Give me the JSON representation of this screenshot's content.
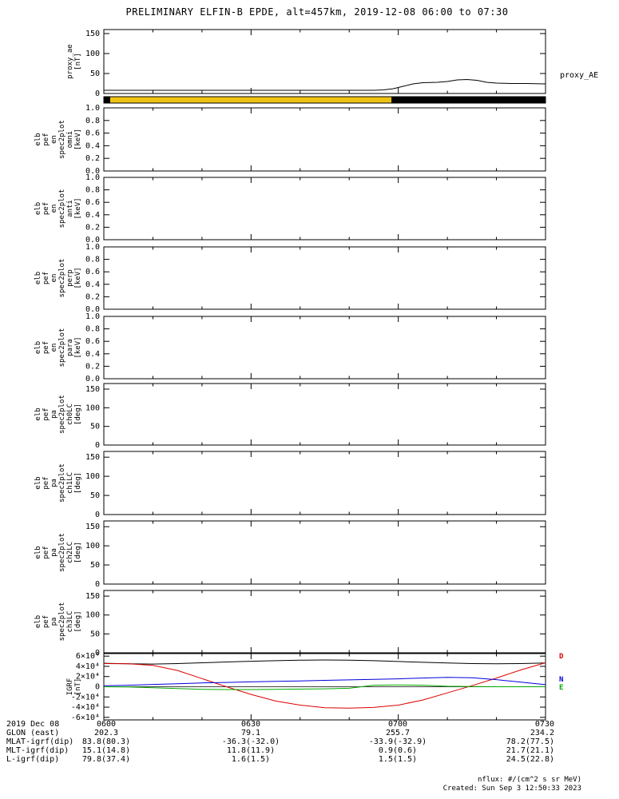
{
  "title": "PRELIMINARY ELFIN-B EPDE, alt=457km, 2019-12-08 06:00 to 07:30",
  "footnotes": [
    "nflux: #/(cm^2 s sr MeV)",
    "Created: Sun Sep  3 12:50:33 2023"
  ],
  "xaxis": {
    "range_minutes": [
      0,
      90
    ],
    "major_ticks_minutes": [
      0,
      30,
      60,
      90
    ],
    "minor_step_minutes": 10,
    "tick_labels": [
      "0600",
      "0630",
      "0700",
      "0730"
    ]
  },
  "footer_rows": [
    {
      "label": "2019 Dec 08",
      "values": [
        "0600",
        "0630",
        "0700",
        "0730"
      ]
    },
    {
      "label": "GLON (east)",
      "values": [
        "202.3",
        "79.1",
        "255.7",
        "234.2"
      ]
    },
    {
      "label": "MLAT-igrf(dip)",
      "values": [
        "83.8(80.3)",
        "-36.3(-32.0)",
        "-33.9(-32.9)",
        "78.2(77.5)"
      ]
    },
    {
      "label": "MLT-igrf(dip)",
      "values": [
        "15.1(14.8)",
        "11.8(11.9)",
        "0.9(0.6)",
        "21.7(21.1)"
      ]
    },
    {
      "label": "L-igrf(dip)",
      "values": [
        "79.8(37.4)",
        "1.6(1.5)",
        "1.5(1.5)",
        "24.5(22.8)"
      ]
    }
  ],
  "chart_data": [
    {
      "id": "proxy_ae",
      "type": "line",
      "ylabel_lines": [
        "proxy_ae",
        "[nT]"
      ],
      "yrange": [
        0,
        160
      ],
      "yticks": [
        0,
        50,
        100,
        150
      ],
      "ytick_labels": [
        "0",
        "50",
        "100",
        "150"
      ],
      "right_label": "proxy_AE",
      "x_minutes": [
        0,
        10,
        20,
        30,
        40,
        50,
        55,
        57,
        59,
        61,
        63,
        65,
        68,
        70,
        72,
        74,
        76,
        78,
        80,
        83,
        86,
        90
      ],
      "series": [
        {
          "name": "proxy_AE",
          "color": "#000000",
          "y": [
            8,
            8,
            8,
            8,
            8,
            8,
            8,
            9,
            12,
            18,
            24,
            27,
            28,
            30,
            34,
            35,
            33,
            28,
            26,
            25,
            25,
            24
          ]
        }
      ]
    },
    {
      "id": "survey-bar",
      "type": "bar-strip",
      "segments": [
        {
          "color": "#000000",
          "t": [
            0,
            1.3
          ]
        },
        {
          "color": "#edc213",
          "t": [
            1.3,
            58.6
          ]
        },
        {
          "color": "#000000",
          "t": [
            58.6,
            90
          ]
        }
      ]
    },
    {
      "id": "en-omni",
      "type": "empty",
      "ylabel_lines": [
        "elb",
        "pef",
        "en",
        "spec2plot",
        "omni",
        "[keV]"
      ],
      "yrange": [
        0,
        1
      ],
      "yticks": [
        0,
        0.2,
        0.4,
        0.6,
        0.8,
        1
      ],
      "ytick_labels": [
        "0.0",
        "0.2",
        "0.4",
        "0.6",
        "0.8",
        "1.0"
      ]
    },
    {
      "id": "en-anti",
      "type": "empty",
      "ylabel_lines": [
        "elb",
        "pef",
        "en",
        "spec2plot",
        "anti",
        "[keV]"
      ],
      "yrange": [
        0,
        1
      ],
      "yticks": [
        0,
        0.2,
        0.4,
        0.6,
        0.8,
        1
      ],
      "ytick_labels": [
        "0.0",
        "0.2",
        "0.4",
        "0.6",
        "0.8",
        "1.0"
      ]
    },
    {
      "id": "en-perp",
      "type": "empty",
      "ylabel_lines": [
        "elb",
        "pef",
        "en",
        "spec2plot",
        "perp",
        "[keV]"
      ],
      "yrange": [
        0,
        1
      ],
      "yticks": [
        0,
        0.2,
        0.4,
        0.6,
        0.8,
        1
      ],
      "ytick_labels": [
        "0.0",
        "0.2",
        "0.4",
        "0.6",
        "0.8",
        "1.0"
      ]
    },
    {
      "id": "en-para",
      "type": "empty",
      "ylabel_lines": [
        "elb",
        "pef",
        "en",
        "spec2plot",
        "para",
        "[keV]"
      ],
      "yrange": [
        0,
        1
      ],
      "yticks": [
        0,
        0.2,
        0.4,
        0.6,
        0.8,
        1
      ],
      "ytick_labels": [
        "0.0",
        "0.2",
        "0.4",
        "0.6",
        "0.8",
        "1.0"
      ]
    },
    {
      "id": "pa-ch0LC",
      "type": "empty",
      "ylabel_lines": [
        "elb",
        "pef",
        "pa",
        "spec2plot",
        "ch0LC",
        "[deg]"
      ],
      "yrange": [
        0,
        165
      ],
      "yticks": [
        0,
        50,
        100,
        150
      ],
      "ytick_labels": [
        "0",
        "50",
        "100",
        "150"
      ]
    },
    {
      "id": "pa-ch1LC",
      "type": "empty",
      "ylabel_lines": [
        "elb",
        "pef",
        "pa",
        "spec2plot",
        "ch1LC",
        "[deg]"
      ],
      "yrange": [
        0,
        165
      ],
      "yticks": [
        0,
        50,
        100,
        150
      ],
      "ytick_labels": [
        "0",
        "50",
        "100",
        "150"
      ]
    },
    {
      "id": "pa-ch2LC",
      "type": "empty",
      "ylabel_lines": [
        "elb",
        "pef",
        "pa",
        "spec2plot",
        "ch2LC",
        "[deg]"
      ],
      "yrange": [
        0,
        165
      ],
      "yticks": [
        0,
        50,
        100,
        150
      ],
      "ytick_labels": [
        "0",
        "50",
        "100",
        "150"
      ]
    },
    {
      "id": "pa-ch3LC",
      "type": "empty",
      "ylabel_lines": [
        "elb",
        "pef",
        "pa",
        "spec2plot",
        "ch3LC",
        "[deg]"
      ],
      "yrange": [
        0,
        165
      ],
      "yticks": [
        0,
        50,
        100,
        150
      ],
      "ytick_labels": [
        "0",
        "50",
        "100",
        "150"
      ]
    },
    {
      "id": "igrf",
      "type": "line",
      "ylabel_lines": [
        "IGRF",
        "[nT]"
      ],
      "yrange": [
        -65000,
        65000
      ],
      "yticks": [
        -60000,
        -40000,
        -20000,
        0,
        20000,
        40000,
        60000
      ],
      "ytick_labels": [
        "-6×10⁴",
        "-4×10⁴",
        "-2×10⁴",
        "0",
        "2×10⁴",
        "4×10⁴",
        "6×10⁴"
      ],
      "zero_line": true,
      "x_minutes": [
        0,
        5,
        10,
        15,
        20,
        25,
        30,
        35,
        40,
        45,
        50,
        55,
        60,
        65,
        70,
        75,
        80,
        85,
        90
      ],
      "series": [
        {
          "name": "B",
          "color": "#000000",
          "y": [
            46000,
            45000,
            44500,
            45500,
            47000,
            48500,
            50000,
            51000,
            52000,
            52500,
            52000,
            51000,
            49500,
            48000,
            46500,
            45500,
            45000,
            45500,
            46500
          ]
        },
        {
          "name": "D",
          "color": "#dd0000",
          "y": [
            45500,
            45000,
            42000,
            32000,
            16000,
            0,
            -15000,
            -28000,
            -36000,
            -41000,
            -42000,
            -40500,
            -36000,
            -26000,
            -12000,
            2000,
            17000,
            33000,
            47000
          ]
        },
        {
          "name": "N",
          "color": "#0000dd",
          "y": [
            2000,
            3000,
            4500,
            6000,
            7500,
            8500,
            9500,
            10500,
            11500,
            12500,
            13500,
            14500,
            15500,
            17000,
            18500,
            17500,
            14000,
            9000,
            4000
          ]
        },
        {
          "name": "E",
          "color": "#00aa00",
          "y": [
            0,
            -500,
            -2000,
            -3500,
            -5000,
            -5500,
            -5500,
            -5000,
            -4500,
            -4000,
            -3000,
            3000,
            3500,
            3000,
            1000,
            500,
            0,
            0,
            0
          ]
        }
      ],
      "legend": [
        {
          "label": "D",
          "color": "#dd0000"
        },
        {
          "label": "N",
          "color": "#0000dd"
        },
        {
          "label": "E",
          "color": "#00aa00"
        }
      ]
    }
  ]
}
